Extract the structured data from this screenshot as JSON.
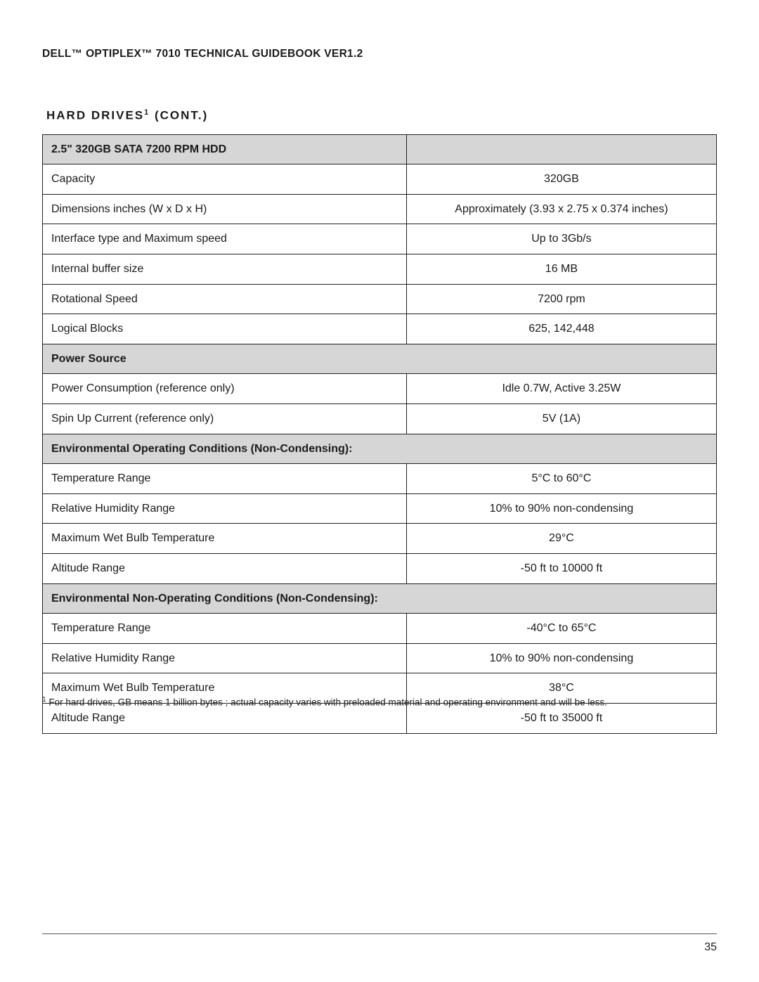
{
  "doc": {
    "header": "DELL™ OPTIPLEX™ 7010 TECHNICAL GUIDEBOOK VER1.2",
    "section_title_pre": "HARD DRIVES",
    "section_title_sup": "1",
    "section_title_post": " (CONT.)",
    "page_number": "35"
  },
  "footnote": {
    "marker": "1",
    "text": " For hard drives, GB means 1 billion bytes ; actual capacity varies with preloaded material and operating environment and will be less."
  },
  "table": {
    "columns": [
      "label",
      "value"
    ],
    "header_bg": "#d6d6d6",
    "border_color": "#222222",
    "rows": [
      {
        "type": "header-split",
        "label": "2.5\" 320GB SATA 7200 RPM HDD",
        "value": ""
      },
      {
        "type": "data",
        "label": "Capacity",
        "value": "320GB"
      },
      {
        "type": "data",
        "label": "Dimensions inches (W x D x H)",
        "value": "Approximately (3.93 x 2.75 x 0.374 inches)"
      },
      {
        "type": "data",
        "label": "Interface type and Maximum speed",
        "value": "Up to 3Gb/s"
      },
      {
        "type": "data",
        "label": "Internal buffer size",
        "value": "16 MB"
      },
      {
        "type": "data",
        "label": "Rotational Speed",
        "value": "7200 rpm"
      },
      {
        "type": "data",
        "label": "Logical Blocks",
        "value": "625, 142,448"
      },
      {
        "type": "header-span",
        "label": "Power Source"
      },
      {
        "type": "data",
        "label": "Power Consumption (reference only)",
        "value": "Idle 0.7W, Active 3.25W"
      },
      {
        "type": "data",
        "label": "Spin Up Current (reference only)",
        "value": "5V (1A)"
      },
      {
        "type": "header-span",
        "label": "Environmental Operating Conditions (Non-Condensing):"
      },
      {
        "type": "data",
        "label": "Temperature Range",
        "value": "5°C to 60°C"
      },
      {
        "type": "data",
        "label": "Relative Humidity Range",
        "value": "10% to 90% non-condensing"
      },
      {
        "type": "data",
        "label": "Maximum Wet Bulb Temperature",
        "value": "29°C"
      },
      {
        "type": "data",
        "label": "Altitude Range",
        "value": "-50 ft to 10000 ft"
      },
      {
        "type": "header-span",
        "label": "Environmental Non-Operating Conditions (Non-Condensing):"
      },
      {
        "type": "data",
        "label": "Temperature Range",
        "value": "-40°C to 65°C"
      },
      {
        "type": "data",
        "label": "Relative Humidity Range",
        "value": "10% to 90% non-condensing"
      },
      {
        "type": "data",
        "label": "Maximum Wet Bulb Temperature",
        "value": "38°C"
      },
      {
        "type": "data",
        "label": "Altitude Range",
        "value": "-50 ft to 35000 ft"
      }
    ]
  }
}
